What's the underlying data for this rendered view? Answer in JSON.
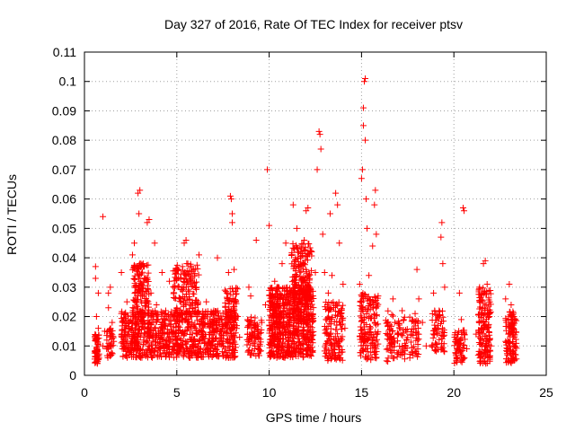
{
  "chart_data": {
    "type": "scatter",
    "title": "Day 327 of 2016, Rate Of TEC Index for receiver ptsv",
    "xlabel": "GPS time / hours",
    "ylabel": "ROTI / TECUs",
    "xlim": [
      0,
      25
    ],
    "ylim": [
      0,
      0.11
    ],
    "x_ticks": [
      "0",
      "5",
      "10",
      "15",
      "20",
      "25"
    ],
    "y_ticks": [
      "0",
      "0.01",
      "0.02",
      "0.03",
      "0.04",
      "0.05",
      "0.06",
      "0.07",
      "0.08",
      "0.09",
      "0.1",
      "0.11"
    ],
    "grid": true,
    "marker": "+",
    "color": "#ff0000",
    "series": [
      {
        "points": [
          [
            0.6,
            0.037
          ],
          [
            0.6,
            0.033
          ],
          [
            0.65,
            0.02
          ],
          [
            0.65,
            0.012
          ],
          [
            0.7,
            0.008
          ],
          [
            0.7,
            0.004
          ],
          [
            0.75,
            0.028
          ],
          [
            0.75,
            0.016
          ],
          [
            1.0,
            0.054
          ],
          [
            1.0,
            0.01
          ],
          [
            1.1,
            0.015
          ],
          [
            1.2,
            0.009
          ],
          [
            1.3,
            0.028
          ],
          [
            1.3,
            0.023
          ],
          [
            1.4,
            0.03
          ],
          [
            1.4,
            0.007
          ],
          [
            1.5,
            0.018
          ],
          [
            2.0,
            0.035
          ],
          [
            2.0,
            0.021
          ],
          [
            2.1,
            0.013
          ],
          [
            2.2,
            0.009
          ],
          [
            2.3,
            0.025
          ],
          [
            2.4,
            0.015
          ],
          [
            2.5,
            0.011
          ],
          [
            2.6,
            0.041
          ],
          [
            2.7,
            0.045
          ],
          [
            2.8,
            0.03
          ],
          [
            2.9,
            0.062
          ],
          [
            2.95,
            0.055
          ],
          [
            3.0,
            0.063
          ],
          [
            3.0,
            0.038
          ],
          [
            3.1,
            0.02
          ],
          [
            3.2,
            0.012
          ],
          [
            3.3,
            0.033
          ],
          [
            3.4,
            0.052
          ],
          [
            3.5,
            0.053
          ],
          [
            3.6,
            0.028
          ],
          [
            3.7,
            0.018
          ],
          [
            3.8,
            0.045
          ],
          [
            3.9,
            0.024
          ],
          [
            4.0,
            0.015
          ],
          [
            4.2,
            0.035
          ],
          [
            4.4,
            0.022
          ],
          [
            4.6,
            0.032
          ],
          [
            4.8,
            0.011
          ],
          [
            5.0,
            0.036
          ],
          [
            5.2,
            0.026
          ],
          [
            5.4,
            0.045
          ],
          [
            5.5,
            0.046
          ],
          [
            5.6,
            0.038
          ],
          [
            5.8,
            0.02
          ],
          [
            6.0,
            0.03
          ],
          [
            6.2,
            0.041
          ],
          [
            6.4,
            0.014
          ],
          [
            6.6,
            0.025
          ],
          [
            6.8,
            0.019
          ],
          [
            7.0,
            0.022
          ],
          [
            7.2,
            0.04
          ],
          [
            7.4,
            0.015
          ],
          [
            7.6,
            0.029
          ],
          [
            7.8,
            0.035
          ],
          [
            7.9,
            0.061
          ],
          [
            7.95,
            0.06
          ],
          [
            8.0,
            0.055
          ],
          [
            8.0,
            0.052
          ],
          [
            8.1,
            0.036
          ],
          [
            8.2,
            0.025
          ],
          [
            8.3,
            0.02
          ],
          [
            8.4,
            0.013
          ],
          [
            8.9,
            0.03
          ],
          [
            9.0,
            0.027
          ],
          [
            9.2,
            0.015
          ],
          [
            9.3,
            0.046
          ],
          [
            9.5,
            0.01
          ],
          [
            9.6,
            0.018
          ],
          [
            9.8,
            0.024
          ],
          [
            9.9,
            0.07
          ],
          [
            10.0,
            0.051
          ],
          [
            10.1,
            0.027
          ],
          [
            10.3,
            0.032
          ],
          [
            10.5,
            0.03
          ],
          [
            10.7,
            0.038
          ],
          [
            10.9,
            0.045
          ],
          [
            11.1,
            0.02
          ],
          [
            11.3,
            0.058
          ],
          [
            11.5,
            0.05
          ],
          [
            11.7,
            0.04
          ],
          [
            11.9,
            0.046
          ],
          [
            12.0,
            0.056
          ],
          [
            12.1,
            0.057
          ],
          [
            12.3,
            0.042
          ],
          [
            12.5,
            0.035
          ],
          [
            12.6,
            0.07
          ],
          [
            12.7,
            0.083
          ],
          [
            12.75,
            0.082
          ],
          [
            12.8,
            0.077
          ],
          [
            12.9,
            0.048
          ],
          [
            13.0,
            0.035
          ],
          [
            13.2,
            0.028
          ],
          [
            13.3,
            0.055
          ],
          [
            13.4,
            0.034
          ],
          [
            13.6,
            0.062
          ],
          [
            13.7,
            0.058
          ],
          [
            13.8,
            0.045
          ],
          [
            13.9,
            0.021
          ],
          [
            14.0,
            0.031
          ],
          [
            14.1,
            0.016
          ],
          [
            14.9,
            0.031
          ],
          [
            15.0,
            0.067
          ],
          [
            15.05,
            0.07
          ],
          [
            15.1,
            0.085
          ],
          [
            15.1,
            0.091
          ],
          [
            15.15,
            0.1
          ],
          [
            15.2,
            0.101
          ],
          [
            15.2,
            0.08
          ],
          [
            15.25,
            0.06
          ],
          [
            15.3,
            0.05
          ],
          [
            15.4,
            0.034
          ],
          [
            15.6,
            0.044
          ],
          [
            15.7,
            0.058
          ],
          [
            15.75,
            0.063
          ],
          [
            15.8,
            0.048
          ],
          [
            15.9,
            0.027
          ],
          [
            16.4,
            0.018
          ],
          [
            16.5,
            0.012
          ],
          [
            16.7,
            0.026
          ],
          [
            16.8,
            0.018
          ],
          [
            17.0,
            0.014
          ],
          [
            17.2,
            0.022
          ],
          [
            17.4,
            0.01
          ],
          [
            17.7,
            0.014
          ],
          [
            17.9,
            0.021
          ],
          [
            18.0,
            0.036
          ],
          [
            18.1,
            0.026
          ],
          [
            18.3,
            0.018
          ],
          [
            18.5,
            0.01
          ],
          [
            18.9,
            0.028
          ],
          [
            19.1,
            0.014
          ],
          [
            19.2,
            0.022
          ],
          [
            19.3,
            0.047
          ],
          [
            19.35,
            0.052
          ],
          [
            19.4,
            0.038
          ],
          [
            19.5,
            0.03
          ],
          [
            20.1,
            0.012
          ],
          [
            20.3,
            0.028
          ],
          [
            20.4,
            0.019
          ],
          [
            20.5,
            0.057
          ],
          [
            20.55,
            0.056
          ],
          [
            20.7,
            0.009
          ],
          [
            21.2,
            0.014
          ],
          [
            21.4,
            0.025
          ],
          [
            21.6,
            0.038
          ],
          [
            21.7,
            0.039
          ],
          [
            21.8,
            0.031
          ],
          [
            21.9,
            0.02
          ],
          [
            22.0,
            0.01
          ],
          [
            22.8,
            0.026
          ],
          [
            23.0,
            0.031
          ],
          [
            23.1,
            0.024
          ],
          [
            23.3,
            0.01
          ]
        ]
      }
    ]
  }
}
